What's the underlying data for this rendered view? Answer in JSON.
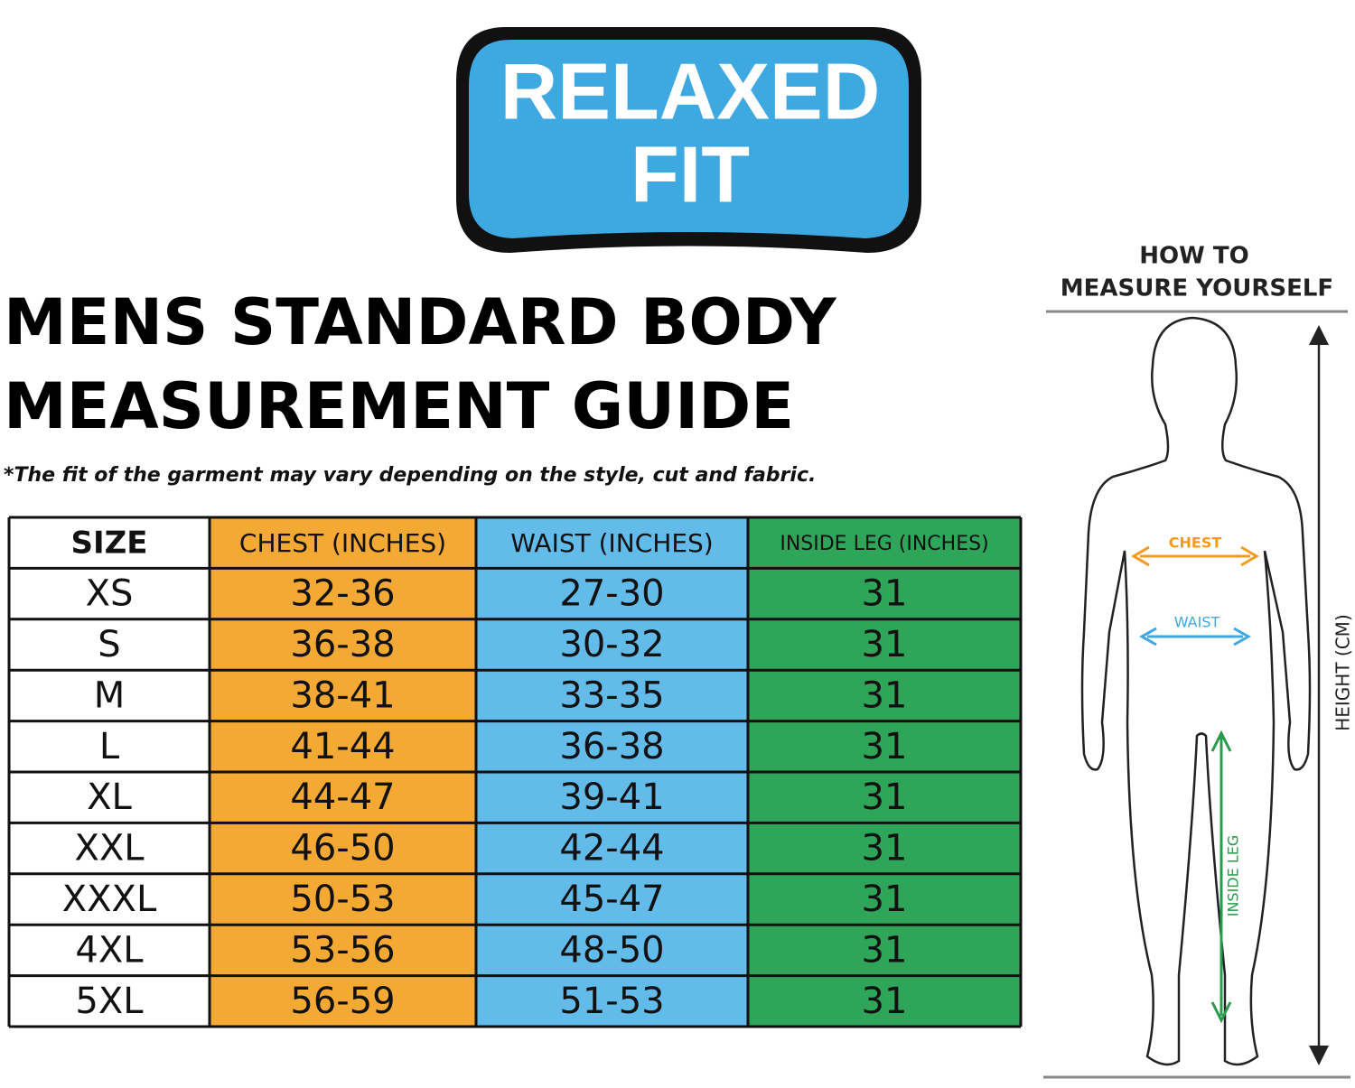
{
  "badge": {
    "lines": [
      "RELAXED",
      "FIT"
    ]
  },
  "title": {
    "lines": [
      "MENS STANDARD BODY",
      "MEASUREMENT GUIDE"
    ]
  },
  "note": "*The fit of the garment may vary depending on the style, cut and fabric.",
  "table": {
    "header": [
      "SIZE",
      "CHEST (INCHES)",
      "WAIST (INCHES)",
      "INSIDE LEG (INCHES)"
    ],
    "rows": [
      [
        "XS",
        "32-36",
        "27-30",
        "31"
      ],
      [
        "S",
        "36-38",
        "30-32",
        "31"
      ],
      [
        "M",
        "38-41",
        "33-35",
        "31"
      ],
      [
        "L",
        "41-44",
        "36-38",
        "31"
      ],
      [
        "XL",
        "44-47",
        "39-41",
        "31"
      ],
      [
        "XXL",
        "46-50",
        "42-44",
        "31"
      ],
      [
        "XXXL",
        "50-53",
        "45-47",
        "31"
      ],
      [
        "4XL",
        "53-56",
        "48-50",
        "31"
      ],
      [
        "5XL",
        "56-59",
        "51-53",
        "31"
      ]
    ]
  },
  "figure": {
    "heading": [
      "HOW TO",
      "MEASURE YOURSELF"
    ],
    "chest": "CHEST",
    "waist": "WAIST",
    "inside_leg": "INSIDE LEG",
    "height": "HEIGHT (CM)"
  }
}
